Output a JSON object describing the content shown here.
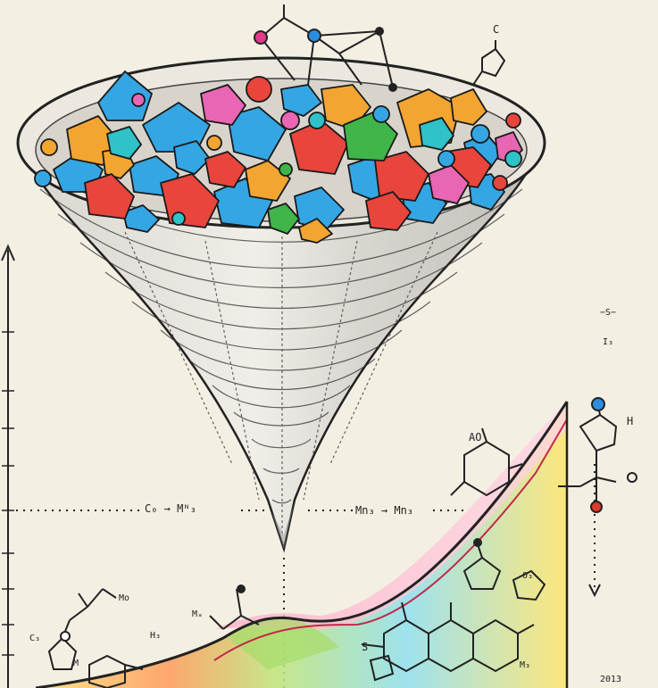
{
  "labels": {
    "left_arrow": "C₀ → Mᴺ₃",
    "right_arrow": "Mn₃ → Mn₃",
    "top_right_c": "C",
    "ao": "AO",
    "h_label": "H",
    "mo": "Mo",
    "m_label": "M",
    "ma": "Mₐ",
    "hb": "H₃",
    "s_label": "S",
    "mp": "M₃",
    "cs": "C₃",
    "ox": "O₃",
    "corner": "2013",
    "side_legend_top": "−S−",
    "side_legend_bottom": "I₃"
  },
  "colors": {
    "paper": "#f4efe3",
    "ink": "#222222",
    "crystal_blue": "#35a6e4",
    "crystal_orange": "#f2a531",
    "crystal_red": "#e8453c",
    "crystal_green": "#3fb54a",
    "crystal_pink": "#e866b4",
    "crystal_teal": "#2fc2c9"
  }
}
